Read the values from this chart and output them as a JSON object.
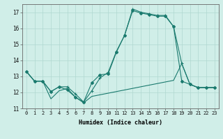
{
  "xlabel": "Humidex (Indice chaleur)",
  "xlim": [
    -0.5,
    23.5
  ],
  "ylim": [
    11,
    17.5
  ],
  "yticks": [
    11,
    12,
    13,
    14,
    15,
    16,
    17
  ],
  "xticks": [
    0,
    1,
    2,
    3,
    4,
    5,
    6,
    7,
    8,
    9,
    10,
    11,
    12,
    13,
    14,
    15,
    16,
    17,
    18,
    19,
    20,
    21,
    22,
    23
  ],
  "background_color": "#d0eee8",
  "grid_color": "#b0d8d0",
  "line_color": "#1a7a6e",
  "line1_x": [
    0,
    1,
    2,
    3,
    4,
    5,
    6,
    7,
    8,
    9,
    10,
    11,
    12,
    13,
    14,
    15,
    16,
    17,
    18,
    19,
    20,
    21,
    22,
    23
  ],
  "line1_y": [
    13.3,
    12.7,
    12.7,
    12.05,
    12.35,
    12.15,
    11.7,
    11.4,
    12.6,
    13.1,
    13.15,
    14.5,
    15.55,
    17.1,
    16.95,
    16.85,
    16.75,
    16.75,
    16.1,
    12.7,
    12.5,
    12.3,
    12.3,
    12.3
  ],
  "line2_x": [
    0,
    1,
    2,
    3,
    4,
    5,
    6,
    7,
    8,
    9,
    10,
    11,
    12,
    13,
    14,
    15,
    16,
    17,
    18,
    19,
    20,
    21,
    22,
    23
  ],
  "line2_y": [
    13.3,
    12.7,
    12.7,
    12.05,
    12.35,
    12.35,
    11.9,
    11.4,
    12.1,
    12.9,
    13.25,
    14.55,
    15.55,
    17.2,
    17.0,
    16.9,
    16.8,
    16.8,
    16.1,
    13.8,
    12.5,
    12.3,
    12.3,
    12.3
  ],
  "line3_x": [
    0,
    1,
    2,
    3,
    4,
    5,
    6,
    7,
    8,
    9,
    10,
    11,
    12,
    13,
    14,
    15,
    16,
    17,
    18,
    19,
    20,
    21,
    22,
    23
  ],
  "line3_y": [
    13.3,
    12.7,
    12.7,
    11.6,
    12.1,
    12.25,
    11.7,
    11.35,
    11.75,
    11.85,
    11.95,
    12.05,
    12.15,
    12.25,
    12.35,
    12.45,
    12.55,
    12.65,
    12.75,
    13.8,
    12.5,
    12.3,
    12.3,
    12.3
  ]
}
